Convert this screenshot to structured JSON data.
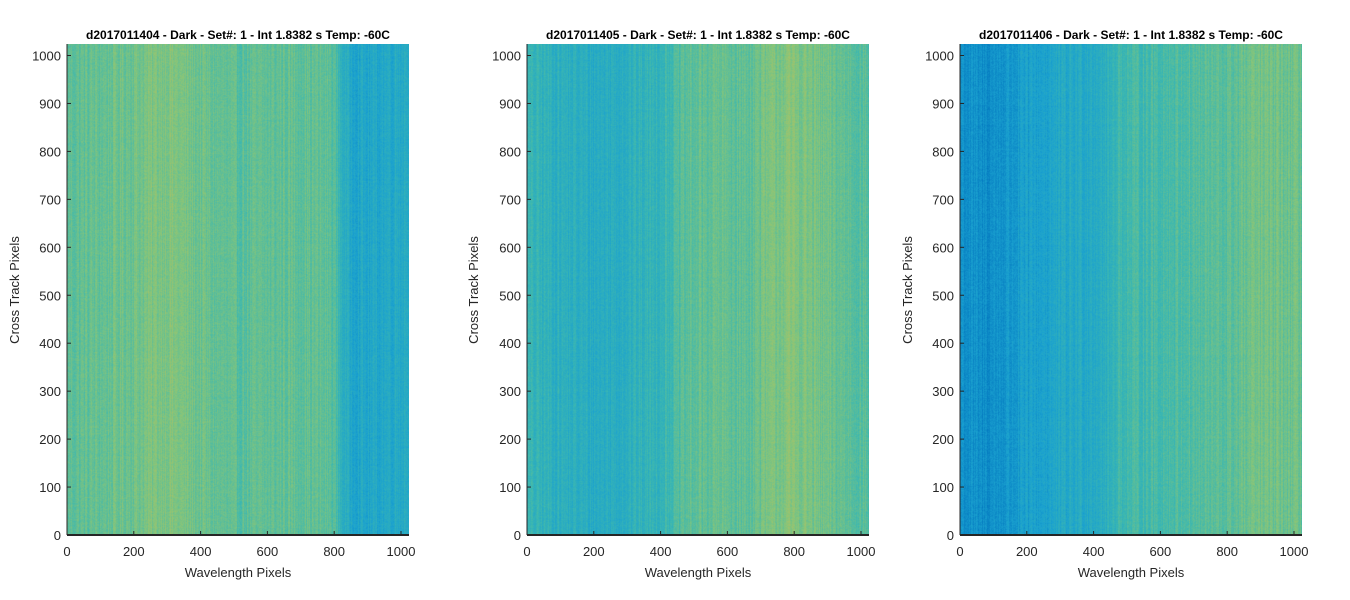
{
  "figure": {
    "panels": [
      {
        "title": "d2017011404 - Dark - Set#: 1 - Int 1.8382 s Temp: -60C",
        "xlabel": "Wavelength Pixels",
        "ylabel": "Cross Track Pixels"
      },
      {
        "title": "d2017011405 - Dark - Set#: 1 - Int 1.8382 s Temp: -60C",
        "xlabel": "Wavelength Pixels",
        "ylabel": "Cross Track Pixels"
      },
      {
        "title": "d2017011406 - Dark - Set#: 1 - Int 1.8382 s Temp: -60C",
        "xlabel": "Wavelength Pixels",
        "ylabel": "Cross Track Pixels"
      }
    ]
  },
  "chart_data": [
    {
      "type": "heatmap",
      "title": "d2017011404 - Dark - Set#: 1 - Int 1.8382 s Temp: -60C",
      "xlabel": "Wavelength Pixels",
      "ylabel": "Cross Track Pixels",
      "xlim": [
        0,
        1024
      ],
      "ylim": [
        0,
        1024
      ],
      "xticks": [
        0,
        200,
        400,
        600,
        800,
        1000
      ],
      "yticks": [
        0,
        100,
        200,
        300,
        400,
        500,
        600,
        700,
        800,
        900,
        1000
      ],
      "xtick_labels": [
        "0",
        "200",
        "400",
        "600",
        "800",
        "1000"
      ],
      "ytick_labels": [
        "0",
        "100",
        "200",
        "300",
        "400",
        "500",
        "600",
        "700",
        "800",
        "900",
        "1000"
      ],
      "colormap": [
        "#0072bd",
        "#1aa1d0",
        "#3db8b0",
        "#86c57a",
        "#cdbd53"
      ],
      "column_profile": {
        "wavelength": [
          0,
          100,
          200,
          300,
          400,
          500,
          600,
          700,
          800,
          820,
          840,
          900,
          1000,
          1024
        ],
        "relative_level": [
          0.62,
          0.64,
          0.68,
          0.74,
          0.66,
          0.6,
          0.62,
          0.64,
          0.6,
          0.44,
          0.34,
          0.3,
          0.36,
          0.38
        ]
      },
      "noise": 0.11
    },
    {
      "type": "heatmap",
      "title": "d2017011405 - Dark - Set#: 1 - Int 1.8382 s Temp: -60C",
      "xlabel": "Wavelength Pixels",
      "ylabel": "Cross Track Pixels",
      "xlim": [
        0,
        1024
      ],
      "ylim": [
        0,
        1024
      ],
      "xticks": [
        0,
        200,
        400,
        600,
        800,
        1000
      ],
      "yticks": [
        0,
        100,
        200,
        300,
        400,
        500,
        600,
        700,
        800,
        900,
        1000
      ],
      "xtick_labels": [
        "0",
        "200",
        "400",
        "600",
        "800",
        "1000"
      ],
      "ytick_labels": [
        "0",
        "100",
        "200",
        "300",
        "400",
        "500",
        "600",
        "700",
        "800",
        "900",
        "1000"
      ],
      "colormap": [
        "#0072bd",
        "#1aa1d0",
        "#3db8b0",
        "#86c57a",
        "#cdbd53"
      ],
      "column_profile": {
        "wavelength": [
          0,
          100,
          200,
          300,
          400,
          480,
          560,
          650,
          750,
          800,
          900,
          1000,
          1024
        ],
        "relative_level": [
          0.45,
          0.4,
          0.36,
          0.4,
          0.46,
          0.6,
          0.64,
          0.62,
          0.72,
          0.74,
          0.66,
          0.6,
          0.58
        ]
      },
      "noise": 0.11
    },
    {
      "type": "heatmap",
      "title": "d2017011406 - Dark - Set#: 1 - Int 1.8382 s Temp: -60C",
      "xlabel": "Wavelength Pixels",
      "ylabel": "Cross Track Pixels",
      "xlim": [
        0,
        1024
      ],
      "ylim": [
        0,
        1024
      ],
      "xticks": [
        0,
        200,
        400,
        600,
        800,
        1000
      ],
      "yticks": [
        0,
        100,
        200,
        300,
        400,
        500,
        600,
        700,
        800,
        900,
        1000
      ],
      "xtick_labels": [
        "0",
        "200",
        "400",
        "600",
        "800",
        "1000"
      ],
      "ytick_labels": [
        "0",
        "100",
        "200",
        "300",
        "400",
        "500",
        "600",
        "700",
        "800",
        "900",
        "1000"
      ],
      "colormap": [
        "#0072bd",
        "#1aa1d0",
        "#3db8b0",
        "#86c57a",
        "#cdbd53"
      ],
      "column_profile": {
        "wavelength": [
          0,
          60,
          150,
          250,
          350,
          450,
          470,
          600,
          700,
          800,
          900,
          1000,
          1024
        ],
        "relative_level": [
          0.18,
          0.14,
          0.2,
          0.28,
          0.34,
          0.4,
          0.5,
          0.54,
          0.58,
          0.6,
          0.68,
          0.66,
          0.64
        ]
      },
      "noise": 0.11
    }
  ]
}
